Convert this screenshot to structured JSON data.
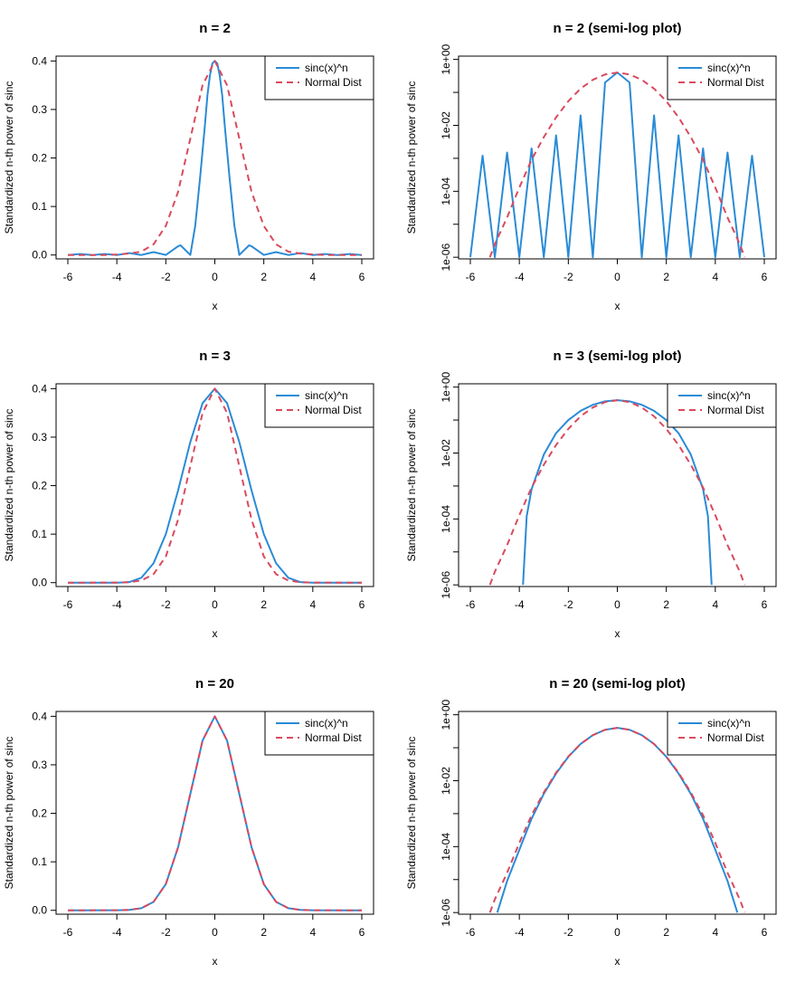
{
  "colors": {
    "sinc": "#2a8bd6",
    "normal": "#d94a5e"
  },
  "chart_data": [
    {
      "type": "line",
      "title": "n = 2",
      "xlabel": "x",
      "ylabel": "Standardized n-th power of sinc",
      "x_range": [
        -6,
        6
      ],
      "ylim": [
        -0.008,
        0.41
      ],
      "y_scale": "linear",
      "xticks": [
        "-6",
        "-4",
        "-2",
        "0",
        "2",
        "4",
        "6"
      ],
      "yticks": [
        "0.0",
        "0.1",
        "0.2",
        "0.3",
        "0.4"
      ],
      "legend_position": "top-right",
      "series": [
        {
          "name": "sinc(x)^n",
          "style": "solid",
          "x": [
            -6,
            -5.5,
            -5,
            -4.5,
            -4,
            -3.5,
            -3,
            -2.5,
            -2,
            -1.5,
            -1.4,
            -1,
            -0.8,
            -0.6,
            -0.4,
            -0.3,
            -0.2,
            -0.1,
            0,
            0.1,
            0.2,
            0.3,
            0.4,
            0.6,
            0.8,
            1,
            1.4,
            1.5,
            2,
            2.5,
            3,
            3.5,
            4,
            4.5,
            5,
            5.5,
            6
          ],
          "y": [
            0,
            0.002,
            0,
            0.002,
            0,
            0.004,
            0,
            0.006,
            0,
            0.018,
            0.02,
            0,
            0.06,
            0.16,
            0.27,
            0.33,
            0.37,
            0.395,
            0.4,
            0.395,
            0.37,
            0.33,
            0.27,
            0.16,
            0.06,
            0,
            0.02,
            0.018,
            0,
            0.006,
            0,
            0.004,
            0,
            0.002,
            0,
            0.002,
            0
          ]
        },
        {
          "name": "Normal Dist",
          "style": "dashed",
          "x": [
            -6,
            -5.5,
            -5,
            -4.5,
            -4,
            -3.5,
            -3,
            -2.5,
            -2,
            -1.5,
            -1,
            -0.5,
            0,
            0.5,
            1,
            1.5,
            2,
            2.5,
            3,
            3.5,
            4,
            4.5,
            5,
            5.5,
            6
          ],
          "y": [
            0,
            0,
            0,
            0,
            0.001,
            0.003,
            0.007,
            0.022,
            0.06,
            0.13,
            0.24,
            0.35,
            0.4,
            0.35,
            0.24,
            0.13,
            0.06,
            0.022,
            0.007,
            0.003,
            0.001,
            0,
            0,
            0,
            0
          ]
        }
      ]
    },
    {
      "type": "line",
      "title": "n = 2 (semi-log plot)",
      "xlabel": "x",
      "ylabel": "Standardized n-th power of sinc",
      "x_range": [
        -6,
        6
      ],
      "ylim": [
        1e-06,
        1
      ],
      "y_scale": "log",
      "xticks": [
        "-6",
        "-4",
        "-2",
        "0",
        "2",
        "4",
        "6"
      ],
      "yticks": [
        "1e-06",
        "1e-04",
        "1e-02",
        "1e+00"
      ],
      "legend_position": "top-right",
      "series": [
        {
          "name": "sinc(x)^n",
          "style": "solid",
          "x": [
            -6,
            -5.5,
            -5,
            -4.5,
            -4,
            -3.5,
            -3,
            -2.5,
            -2,
            -1.5,
            -1,
            -0.5,
            0,
            0.5,
            1,
            1.5,
            2,
            2.5,
            3,
            3.5,
            4,
            4.5,
            5,
            5.5,
            6
          ],
          "y": [
            1e-06,
            0.0012,
            1e-06,
            0.0015,
            1e-06,
            0.002,
            1e-06,
            0.005,
            1e-06,
            0.02,
            1e-06,
            0.2,
            0.4,
            0.2,
            1e-06,
            0.02,
            1e-06,
            0.005,
            1e-06,
            0.002,
            1e-06,
            0.0015,
            1e-06,
            0.0012,
            1e-06
          ]
        },
        {
          "name": "Normal Dist",
          "style": "dashed",
          "x": [
            -5.2,
            -5,
            -4.5,
            -4,
            -3.5,
            -3,
            -2.5,
            -2,
            -1.5,
            -1,
            -0.5,
            0,
            0.5,
            1,
            1.5,
            2,
            2.5,
            3,
            3.5,
            4,
            4.5,
            5,
            5.2
          ],
          "y": [
            1e-06,
            2.5e-06,
            1.6e-05,
            0.00013,
            0.0009,
            0.0044,
            0.0175,
            0.054,
            0.13,
            0.24,
            0.35,
            0.4,
            0.35,
            0.24,
            0.13,
            0.054,
            0.0175,
            0.0044,
            0.0009,
            0.00013,
            1.6e-05,
            2.5e-06,
            1e-06
          ]
        }
      ]
    },
    {
      "type": "line",
      "title": "n = 3",
      "xlabel": "x",
      "ylabel": "Standardized n-th power of sinc",
      "x_range": [
        -6,
        6
      ],
      "ylim": [
        -0.008,
        0.41
      ],
      "y_scale": "linear",
      "xticks": [
        "-6",
        "-4",
        "-2",
        "0",
        "2",
        "4",
        "6"
      ],
      "yticks": [
        "0.0",
        "0.1",
        "0.2",
        "0.3",
        "0.4"
      ],
      "legend_position": "top-right",
      "series": [
        {
          "name": "sinc(x)^n",
          "style": "solid",
          "x": [
            -6,
            -4,
            -3.5,
            -3,
            -2.5,
            -2,
            -1.5,
            -1,
            -0.5,
            0,
            0.5,
            1,
            1.5,
            2,
            2.5,
            3,
            3.5,
            4,
            6
          ],
          "y": [
            0,
            0,
            0.001,
            0.01,
            0.04,
            0.1,
            0.19,
            0.29,
            0.37,
            0.4,
            0.37,
            0.29,
            0.19,
            0.1,
            0.04,
            0.01,
            0.001,
            0,
            0
          ]
        },
        {
          "name": "Normal Dist",
          "style": "dashed",
          "x": [
            -6,
            -4,
            -3.5,
            -3,
            -2.5,
            -2,
            -1.5,
            -1,
            -0.5,
            0,
            0.5,
            1,
            1.5,
            2,
            2.5,
            3,
            3.5,
            4,
            6
          ],
          "y": [
            0,
            0.0001,
            0.0009,
            0.0044,
            0.0175,
            0.054,
            0.13,
            0.24,
            0.35,
            0.4,
            0.35,
            0.24,
            0.13,
            0.054,
            0.0175,
            0.0044,
            0.0009,
            0.0001,
            0
          ]
        }
      ]
    },
    {
      "type": "line",
      "title": "n = 3 (semi-log plot)",
      "xlabel": "x",
      "ylabel": "Standardized n-th power of sinc",
      "x_range": [
        -6,
        6
      ],
      "ylim": [
        1e-06,
        1
      ],
      "y_scale": "log",
      "xticks": [
        "-6",
        "-4",
        "-2",
        "0",
        "2",
        "4",
        "6"
      ],
      "yticks": [
        "1e-06",
        "1e-04",
        "1e-02",
        "1e+00"
      ],
      "legend_position": "top-right",
      "series": [
        {
          "name": "sinc(x)^n",
          "style": "solid",
          "x": [
            -3.85,
            -3.7,
            -3.5,
            -3,
            -2.5,
            -2,
            -1.5,
            -1,
            -0.5,
            0,
            0.5,
            1,
            1.5,
            2,
            2.5,
            3,
            3.5,
            3.7,
            3.85
          ],
          "y": [
            1e-06,
            0.00012,
            0.0008,
            0.009,
            0.04,
            0.1,
            0.19,
            0.29,
            0.37,
            0.4,
            0.37,
            0.29,
            0.19,
            0.1,
            0.04,
            0.009,
            0.0008,
            0.00012,
            1e-06
          ]
        },
        {
          "name": "Normal Dist",
          "style": "dashed",
          "x": [
            -5.2,
            -5,
            -4.5,
            -4,
            -3.5,
            -3,
            -2.5,
            -2,
            -1.5,
            -1,
            -0.5,
            0,
            0.5,
            1,
            1.5,
            2,
            2.5,
            3,
            3.5,
            4,
            4.5,
            5,
            5.2
          ],
          "y": [
            1e-06,
            2.5e-06,
            1.6e-05,
            0.00013,
            0.0009,
            0.0044,
            0.0175,
            0.054,
            0.13,
            0.24,
            0.35,
            0.4,
            0.35,
            0.24,
            0.13,
            0.054,
            0.0175,
            0.0044,
            0.0009,
            0.00013,
            1.6e-05,
            2.5e-06,
            1e-06
          ]
        }
      ]
    },
    {
      "type": "line",
      "title": "n = 20",
      "xlabel": "x",
      "ylabel": "Standardized n-th power of sinc",
      "x_range": [
        -6,
        6
      ],
      "ylim": [
        -0.008,
        0.41
      ],
      "y_scale": "linear",
      "xticks": [
        "-6",
        "-4",
        "-2",
        "0",
        "2",
        "4",
        "6"
      ],
      "yticks": [
        "0.0",
        "0.1",
        "0.2",
        "0.3",
        "0.4"
      ],
      "legend_position": "top-right",
      "series": [
        {
          "name": "sinc(x)^n",
          "style": "solid",
          "x": [
            -6,
            -4,
            -3.5,
            -3,
            -2.5,
            -2,
            -1.5,
            -1,
            -0.5,
            0,
            0.5,
            1,
            1.5,
            2,
            2.5,
            3,
            3.5,
            4,
            6
          ],
          "y": [
            0,
            0.0001,
            0.0009,
            0.0044,
            0.0175,
            0.054,
            0.13,
            0.24,
            0.35,
            0.4,
            0.35,
            0.24,
            0.13,
            0.054,
            0.0175,
            0.0044,
            0.0009,
            0.0001,
            0
          ]
        },
        {
          "name": "Normal Dist",
          "style": "dashed",
          "x": [
            -6,
            -4,
            -3.5,
            -3,
            -2.5,
            -2,
            -1.5,
            -1,
            -0.5,
            0,
            0.5,
            1,
            1.5,
            2,
            2.5,
            3,
            3.5,
            4,
            6
          ],
          "y": [
            0,
            0.0001,
            0.0009,
            0.0044,
            0.0175,
            0.054,
            0.13,
            0.24,
            0.35,
            0.4,
            0.35,
            0.24,
            0.13,
            0.054,
            0.0175,
            0.0044,
            0.0009,
            0.0001,
            0
          ]
        }
      ]
    },
    {
      "type": "line",
      "title": "n = 20 (semi-log plot)",
      "xlabel": "x",
      "ylabel": "Standardized n-th power of sinc",
      "x_range": [
        -6,
        6
      ],
      "ylim": [
        1e-06,
        1
      ],
      "y_scale": "log",
      "xticks": [
        "-6",
        "-4",
        "-2",
        "0",
        "2",
        "4",
        "6"
      ],
      "yticks": [
        "1e-06",
        "1e-04",
        "1e-02",
        "1e+00"
      ],
      "legend_position": "top-right",
      "series": [
        {
          "name": "sinc(x)^n",
          "style": "solid",
          "x": [
            -4.9,
            -4.5,
            -4,
            -3.5,
            -3,
            -2.5,
            -2,
            -1.5,
            -1,
            -0.5,
            0,
            0.5,
            1,
            1.5,
            2,
            2.5,
            3,
            3.5,
            4,
            4.5,
            4.9
          ],
          "y": [
            1e-06,
            9e-06,
            8e-05,
            0.0007,
            0.004,
            0.0165,
            0.053,
            0.13,
            0.24,
            0.35,
            0.4,
            0.35,
            0.24,
            0.13,
            0.053,
            0.0165,
            0.004,
            0.0007,
            8e-05,
            9e-06,
            1e-06
          ]
        },
        {
          "name": "Normal Dist",
          "style": "dashed",
          "x": [
            -5.2,
            -5,
            -4.5,
            -4,
            -3.5,
            -3,
            -2.5,
            -2,
            -1.5,
            -1,
            -0.5,
            0,
            0.5,
            1,
            1.5,
            2,
            2.5,
            3,
            3.5,
            4,
            4.5,
            5,
            5.2
          ],
          "y": [
            1e-06,
            2.5e-06,
            1.6e-05,
            0.00013,
            0.0009,
            0.0044,
            0.0175,
            0.054,
            0.13,
            0.24,
            0.35,
            0.4,
            0.35,
            0.24,
            0.13,
            0.054,
            0.0175,
            0.0044,
            0.0009,
            0.00013,
            1.6e-05,
            2.5e-06,
            1e-06
          ]
        }
      ]
    }
  ]
}
